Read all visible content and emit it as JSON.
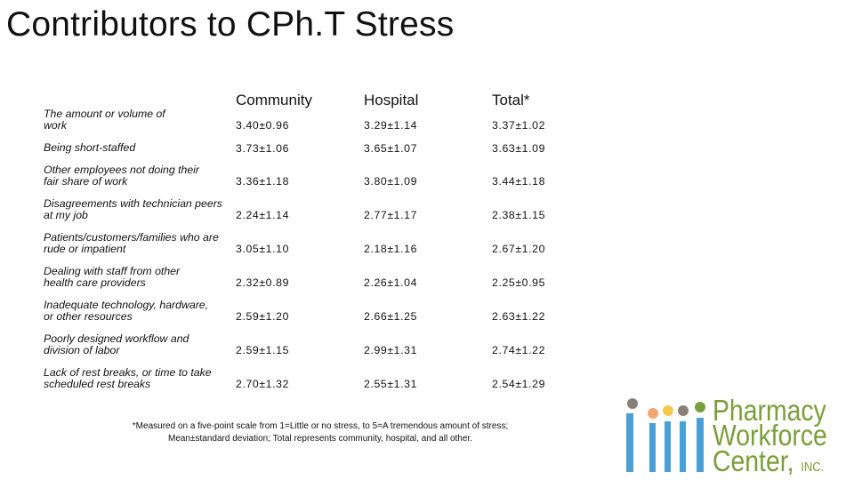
{
  "slide": {
    "title": "Contributors to CPh.T Stress"
  },
  "table": {
    "headers": {
      "community": "Community",
      "hospital": "Hospital",
      "total": "Total*"
    },
    "rows": [
      {
        "label": "The amount or volume of work",
        "community": "3.40±0.96",
        "hospital": "3.29±1.14",
        "total": "3.37±1.02"
      },
      {
        "label": "Being short-staffed",
        "community": "3.73±1.06",
        "hospital": "3.65±1.07",
        "total": "3.63±1.09"
      },
      {
        "label": "Other employees not doing their fair share of work",
        "community": "3.36±1.18",
        "hospital": "3.80±1.09",
        "total": "3.44±1.18"
      },
      {
        "label": "Disagreements with technician peers at my job",
        "community": "2.24±1.14",
        "hospital": "2.77±1.17",
        "total": "2.38±1.15"
      },
      {
        "label": "Patients/customers/families who are rude or impatient",
        "community": "3.05±1.10",
        "hospital": "2.18±1.16",
        "total": "2.67±1.20"
      },
      {
        "label": "Dealing with staff from other health care providers",
        "community": "2.32±0.89",
        "hospital": "2.26±1.04",
        "total": "2.25±0.95"
      },
      {
        "label": "Inadequate technology, hardware, or other resources",
        "community": "2.59±1.20",
        "hospital": "2.66±1.25",
        "total": "2.63±1.22"
      },
      {
        "label": "Poorly designed workflow and division of labor",
        "community": "2.59±1.15",
        "hospital": "2.99±1.31",
        "total": "2.74±1.22"
      },
      {
        "label": "Lack of rest breaks, or time to take scheduled rest breaks",
        "community": "2.70±1.32",
        "hospital": "2.55±1.31",
        "total": "2.54±1.29"
      }
    ]
  },
  "footnote": {
    "line1": "*Measured on a five-point scale from 1=Little or no stress, to 5=A tremendous amount of stress;",
    "line2": "Mean±standard deviation; Total represents community, hospital, and all other."
  },
  "logo": {
    "line1": "Pharmacy",
    "line2": "Workforce",
    "line3": "Center,",
    "suffix": "INC.",
    "colors": {
      "green": "#7a9e3a",
      "blue": "#4a9fd6",
      "gray": "#8a7f76",
      "peach": "#f4a672",
      "yellow": "#f2c94c"
    }
  }
}
